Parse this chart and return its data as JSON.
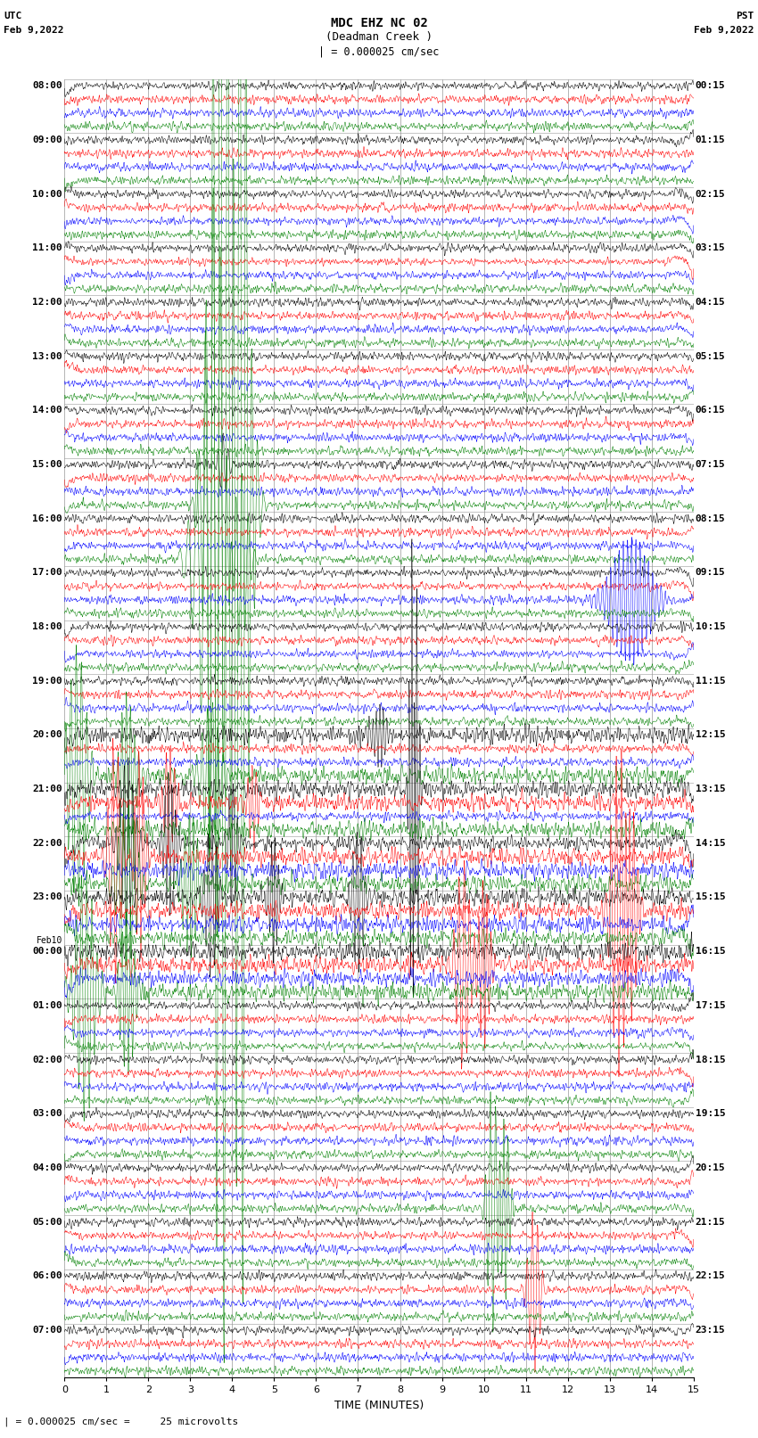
{
  "title_line1": "MDC EHZ NC 02",
  "title_line2": "(Deadman Creek )",
  "title_scale": "| = 0.000025 cm/sec",
  "left_label": "UTC",
  "left_date": "Feb 9,2022",
  "right_label": "PST",
  "right_date": "Feb 9,2022",
  "xlabel": "TIME (MINUTES)",
  "bottom_note": "| = 0.000025 cm/sec =     25 microvolts",
  "utc_times": [
    "08:00",
    "09:00",
    "10:00",
    "11:00",
    "12:00",
    "13:00",
    "14:00",
    "15:00",
    "16:00",
    "17:00",
    "18:00",
    "19:00",
    "20:00",
    "21:00",
    "22:00",
    "23:00",
    "00:00",
    "01:00",
    "02:00",
    "03:00",
    "04:00",
    "05:00",
    "06:00",
    "07:00"
  ],
  "utc_times_prefix": [
    "",
    "",
    "",
    "",
    "",
    "",
    "",
    "",
    "",
    "",
    "",
    "",
    "",
    "",
    "",
    "",
    "Feb10\n",
    "",
    "",
    "",
    "",
    "",
    "",
    ""
  ],
  "pst_times": [
    "00:15",
    "01:15",
    "02:15",
    "03:15",
    "04:15",
    "05:15",
    "06:15",
    "07:15",
    "08:15",
    "09:15",
    "10:15",
    "11:15",
    "12:15",
    "13:15",
    "14:15",
    "15:15",
    "16:15",
    "17:15",
    "18:15",
    "19:15",
    "20:15",
    "21:15",
    "22:15",
    "23:15"
  ],
  "n_rows": 24,
  "n_traces_per_row": 4,
  "colors": [
    "black",
    "red",
    "blue",
    "green"
  ],
  "time_minutes": 15,
  "x_ticks": [
    0,
    1,
    2,
    3,
    4,
    5,
    6,
    7,
    8,
    9,
    10,
    11,
    12,
    13,
    14,
    15
  ],
  "background_color": "white",
  "grid_color": "#999999",
  "fig_width": 8.5,
  "fig_height": 16.13,
  "dpi": 100
}
